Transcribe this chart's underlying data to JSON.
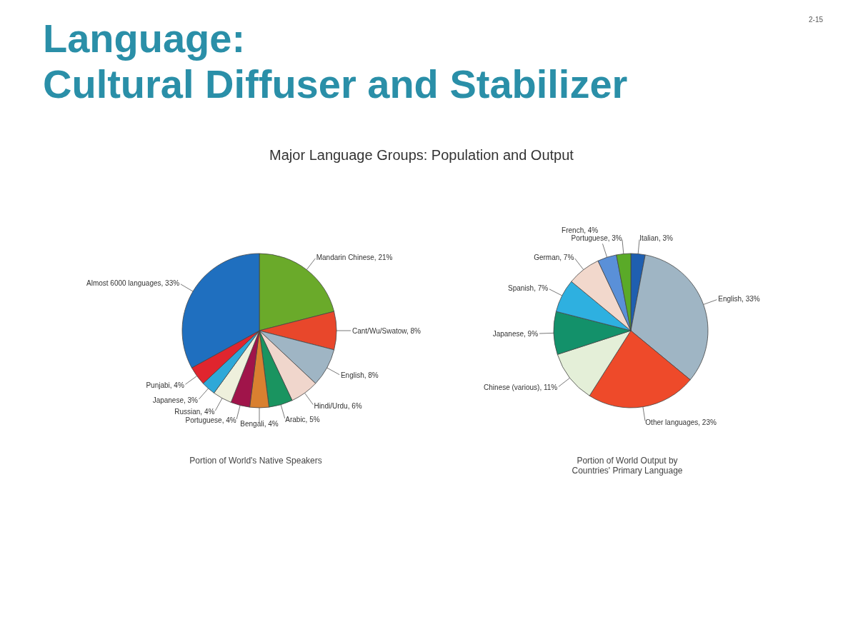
{
  "chart_data": [
    {
      "type": "pie",
      "title": "Language:\nCultural Diffuser and Stabilizer",
      "subtitle": "Major Language Groups: Population and Output",
      "annotations": [
        "2-15"
      ],
      "xlabel": "Portion of World's Native Speakers",
      "categories": [
        "Mandarin Chinese",
        "Cant/Wu/Swatow",
        "English",
        "Hindi/Urdu",
        "Arabic",
        "Bengali",
        "Portuguese",
        "Russian",
        "Japanese",
        "Punjabi",
        "Almost 6000 languages"
      ],
      "values": [
        21,
        8,
        8,
        6,
        5,
        4,
        4,
        4,
        3,
        4,
        33
      ],
      "value_labels": [
        "21%",
        "8%",
        "8%",
        "6%",
        "5%",
        "4%",
        "4%",
        "4%",
        "3%",
        "4%",
        "33%"
      ],
      "colors": [
        "#6aaa2a",
        "#e8472b",
        "#9fb5c4",
        "#f0d6cc",
        "#1a9460",
        "#d98030",
        "#a0144a",
        "#eef0dc",
        "#2ea8d8",
        "#e0252e",
        "#1f6fbf"
      ]
    },
    {
      "type": "pie",
      "xlabel": "Portion of World Output by\nCountries' Primary Language",
      "categories": [
        "Italian",
        "English",
        "Other languages",
        "Chinese (various)",
        "Japanese",
        "Spanish",
        "German",
        "French",
        "Portuguese"
      ],
      "values": [
        3,
        33,
        23,
        11,
        9,
        7,
        7,
        4,
        3
      ],
      "value_labels": [
        "3%",
        "33%",
        "23%",
        "11%",
        "9%",
        "7%",
        "7%",
        "4%",
        "3%"
      ],
      "colors": [
        "#1f5fb0",
        "#9fb5c4",
        "#ee4a2a",
        "#e4efd8",
        "#13916a",
        "#2eb0e0",
        "#f2d8cc",
        "#5a90d8",
        "#5aaa28"
      ]
    }
  ]
}
